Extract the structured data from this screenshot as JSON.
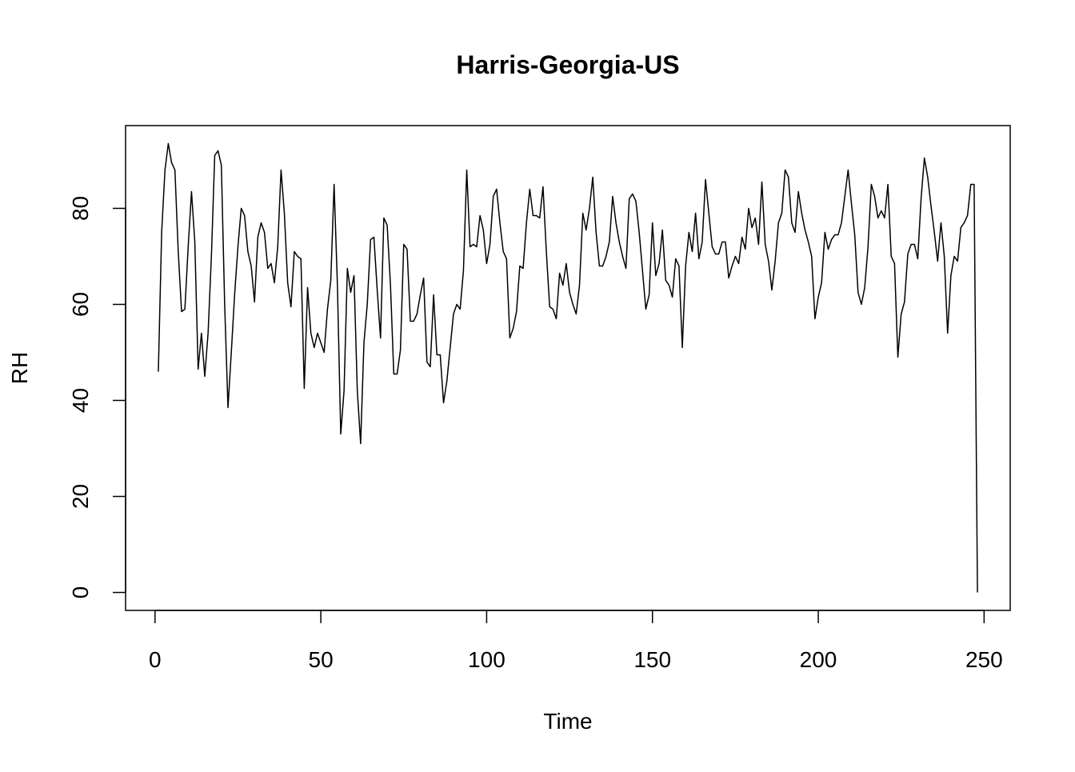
{
  "chart_data": {
    "type": "line",
    "title": "Harris-Georgia-US",
    "x_label": "Time",
    "y_label": "RH",
    "color": "#000000",
    "x": [
      1,
      2,
      3,
      4,
      5,
      6,
      7,
      8,
      9,
      10,
      11,
      12,
      13,
      14,
      15,
      16,
      17,
      18,
      19,
      20,
      21,
      22,
      23,
      24,
      25,
      26,
      27,
      28,
      29,
      30,
      31,
      32,
      33,
      34,
      35,
      36,
      37,
      38,
      39,
      40,
      41,
      42,
      43,
      44,
      45,
      46,
      47,
      48,
      49,
      50,
      51,
      52,
      53,
      54,
      55,
      56,
      57,
      58,
      59,
      60,
      61,
      62,
      63,
      64,
      65,
      66,
      67,
      68,
      69,
      70,
      71,
      72,
      73,
      74,
      75,
      76,
      77,
      78,
      79,
      80,
      81,
      82,
      83,
      84,
      85,
      86,
      87,
      88,
      89,
      90,
      91,
      92,
      93,
      94,
      95,
      96,
      97,
      98,
      99,
      100,
      101,
      102,
      103,
      104,
      105,
      106,
      107,
      108,
      109,
      110,
      111,
      112,
      113,
      114,
      115,
      116,
      117,
      118,
      119,
      120,
      121,
      122,
      123,
      124,
      125,
      126,
      127,
      128,
      129,
      130,
      131,
      132,
      133,
      134,
      135,
      136,
      137,
      138,
      139,
      140,
      141,
      142,
      143,
      144,
      145,
      146,
      147,
      148,
      149,
      150,
      151,
      152,
      153,
      154,
      155,
      156,
      157,
      158,
      159,
      160,
      161,
      162,
      163,
      164,
      165,
      166,
      167,
      168,
      169,
      170,
      171,
      172,
      173,
      174,
      175,
      176,
      177,
      178,
      179,
      180,
      181,
      182,
      183,
      184,
      185,
      186,
      187,
      188,
      189,
      190,
      191,
      192,
      193,
      194,
      195,
      196,
      197,
      198,
      199,
      200,
      201,
      202,
      203,
      204,
      205,
      206,
      207,
      208,
      209,
      210,
      211,
      212,
      213,
      214,
      215,
      216,
      217,
      218,
      219,
      220,
      221,
      222,
      223,
      224,
      225,
      226,
      227,
      228,
      229,
      230,
      231,
      232,
      233,
      234,
      235,
      236,
      237,
      238,
      239,
      240,
      241,
      242,
      243,
      244,
      245,
      246,
      247,
      248
    ],
    "values": [
      46,
      75,
      88,
      93.5,
      89.5,
      88,
      71,
      58.5,
      59,
      72,
      83.5,
      73,
      46.5,
      54,
      45,
      54,
      70,
      91,
      92,
      89,
      60,
      38.5,
      50,
      62,
      72,
      80,
      78.5,
      71,
      68,
      60.5,
      74,
      77,
      75,
      67.5,
      68.5,
      64.5,
      72,
      88,
      79,
      64.5,
      59.5,
      71,
      70,
      69.5,
      42.5,
      63.5,
      54,
      51,
      54,
      52,
      50,
      59,
      65,
      85,
      64,
      33,
      42,
      67.5,
      62.5,
      66,
      42,
      31,
      52,
      60,
      73.5,
      74,
      63,
      53,
      78,
      76.5,
      64,
      45.5,
      45.5,
      50.5,
      72.5,
      71.5,
      56.5,
      56.5,
      58,
      62,
      65.5,
      48,
      47,
      62,
      49.5,
      49.5,
      39.5,
      44,
      51,
      58,
      60,
      59,
      67,
      88,
      72,
      72.5,
      72,
      78.5,
      75.5,
      68.5,
      72.5,
      82.5,
      84,
      77,
      71,
      69.5,
      53,
      55,
      58.5,
      68,
      67.5,
      77,
      84,
      78.5,
      78.5,
      78,
      84.5,
      71,
      59.5,
      59,
      57,
      66.5,
      64,
      68.5,
      62.5,
      60,
      58,
      64,
      79,
      75.5,
      80,
      86.5,
      75,
      68,
      68,
      70,
      73,
      82.5,
      77,
      73,
      70,
      67.5,
      82,
      83,
      81.5,
      75,
      67,
      59,
      62,
      77,
      66,
      68.5,
      75.5,
      65,
      64,
      61.5,
      69.5,
      68,
      51,
      68,
      75,
      71,
      79,
      69.5,
      73,
      86,
      79,
      72,
      70.5,
      70.5,
      73,
      73,
      65.5,
      68,
      70,
      68.5,
      74,
      71.5,
      80,
      76,
      78,
      72.5,
      85.5,
      72.5,
      69,
      63,
      69,
      77,
      79,
      88,
      86.5,
      77,
      75,
      83.5,
      79,
      75.5,
      73,
      70,
      57,
      61.5,
      64.5,
      75,
      71.5,
      73.5,
      74.5,
      74.5,
      77,
      82.5,
      88,
      81,
      74.5,
      62.5,
      60,
      63.5,
      72,
      85,
      82.5,
      78,
      79.5,
      78,
      85,
      70,
      68.5,
      49,
      58,
      60.5,
      70.5,
      72.5,
      72.5,
      69.5,
      82,
      90.5,
      86.5,
      80.5,
      75,
      69,
      77,
      70,
      54,
      66,
      70,
      69,
      76,
      77,
      78.5,
      85,
      85,
      0
    ],
    "xlim": [
      -8.88,
      257.88
    ],
    "ylim": [
      -3.74,
      97.24
    ],
    "xticks": [
      0,
      50,
      100,
      150,
      200,
      250
    ],
    "yticks": [
      0,
      20,
      40,
      60,
      80
    ]
  }
}
